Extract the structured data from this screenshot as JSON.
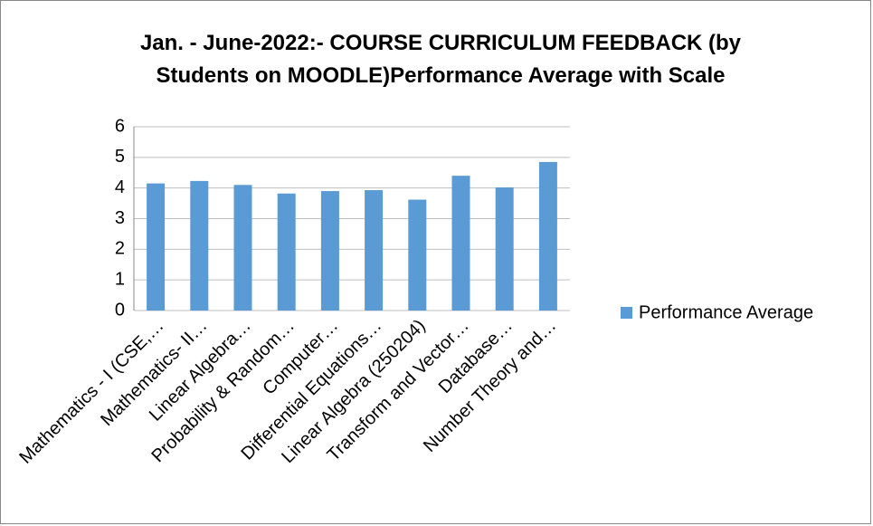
{
  "chart_data": {
    "type": "bar",
    "title": "Jan. - June-2022:- COURSE CURRICULUM FEEDBACK (by Students on MOODLE)Performance Average with Scale",
    "categories": [
      "Mathematics - I (CSE,…",
      "Mathematics- II…",
      "Linear Algebra…",
      "Probability & Random…",
      "Computer…",
      "Differential Equations…",
      "Linear Algebra (250204)",
      "Transform and Vector…",
      "Database…",
      "Number Theory and…"
    ],
    "series": [
      {
        "name": "Performance Average",
        "color": "#5b9bd5",
        "values": [
          4.15,
          4.23,
          4.1,
          3.82,
          3.9,
          3.93,
          3.62,
          4.4,
          4.02,
          4.85
        ]
      }
    ],
    "ylim": [
      0,
      6
    ],
    "yticks": [
      0,
      1,
      2,
      3,
      4,
      5,
      6
    ],
    "grid": true,
    "legend": "right"
  }
}
